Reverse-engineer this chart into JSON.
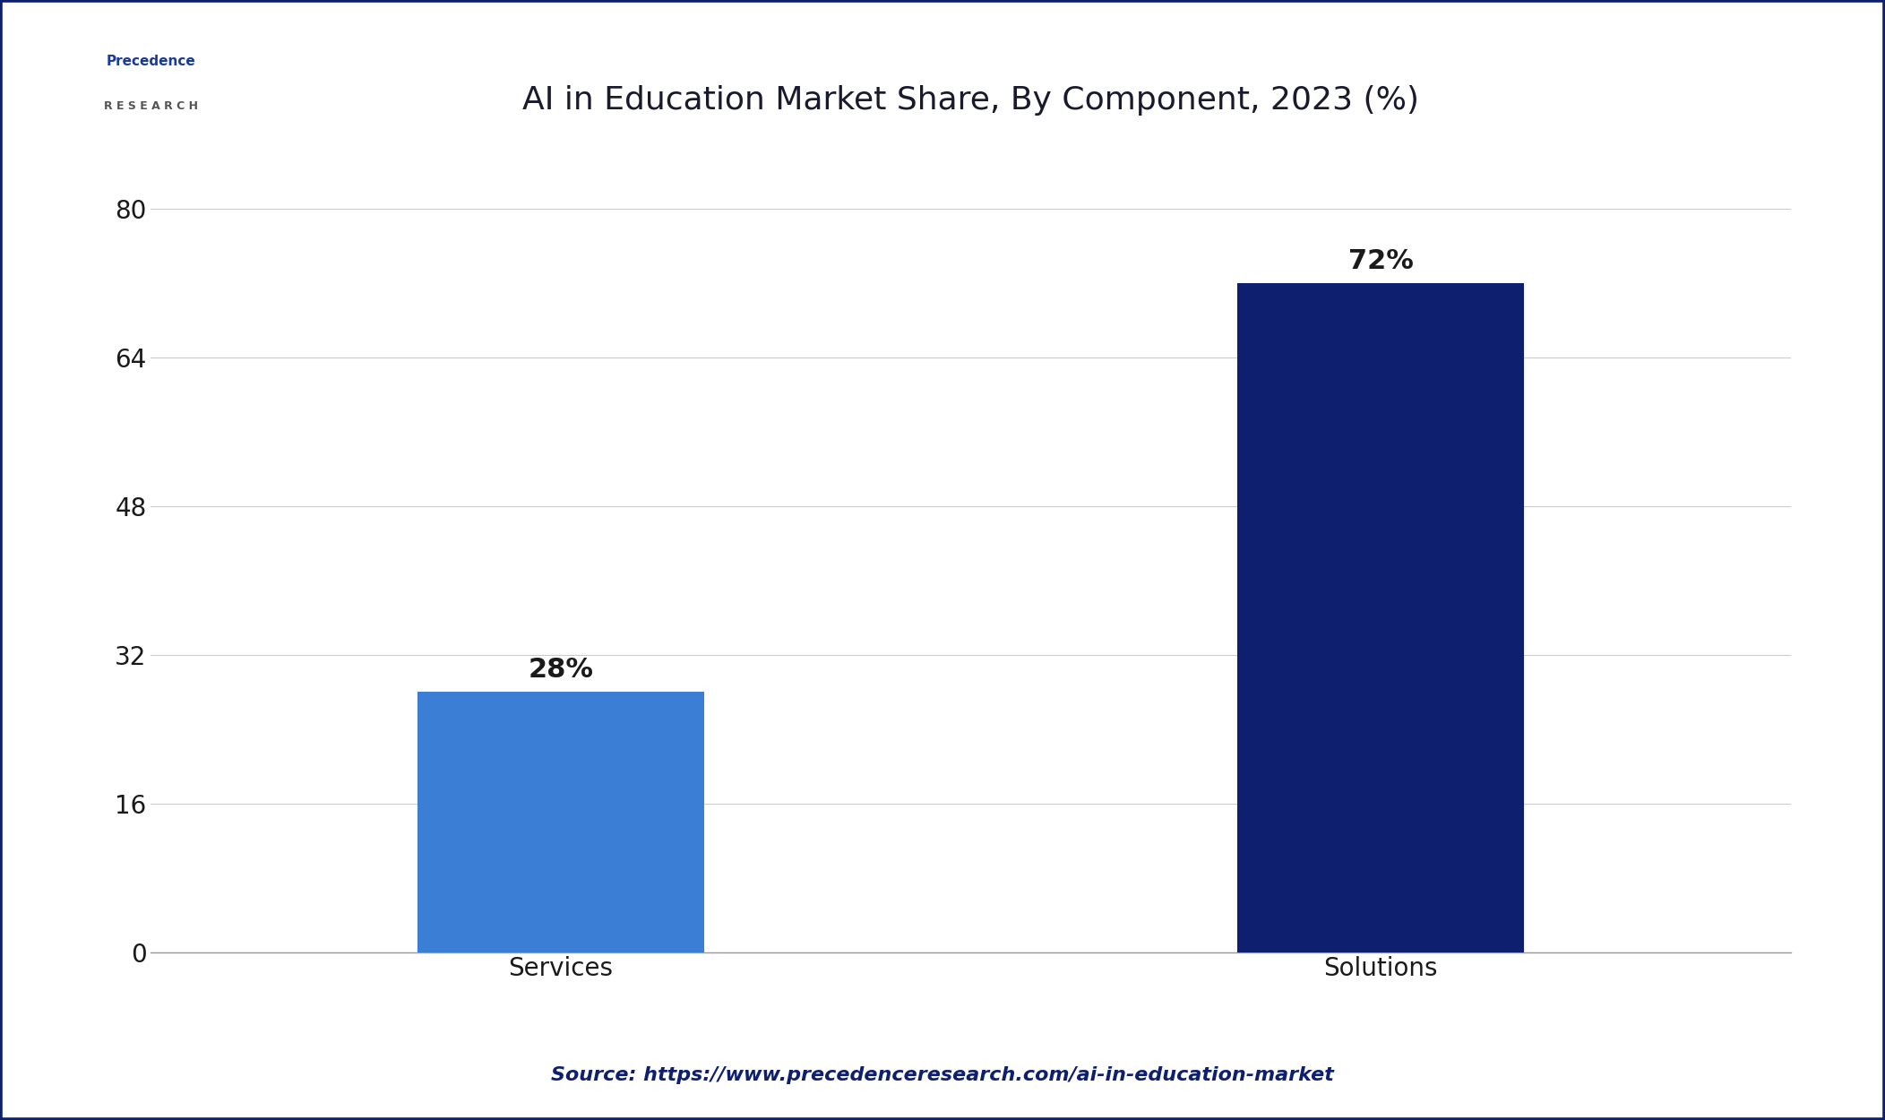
{
  "title": "AI in Education Market Share, By Component, 2023 (%)",
  "categories": [
    "Services",
    "Solutions"
  ],
  "values": [
    28,
    72
  ],
  "bar_colors": [
    "#3a7fd5",
    "#0d1f6e"
  ],
  "bar_labels": [
    "28%",
    "72%"
  ],
  "yticks": [
    0,
    16,
    32,
    48,
    64,
    80
  ],
  "ylim": [
    0,
    88
  ],
  "background_color": "#ffffff",
  "plot_bg_color": "#ffffff",
  "border_color": "#0d1f6e",
  "source_text": "Source: https://www.precedenceresearch.com/ai-in-education-market",
  "source_color": "#0d1f6e",
  "title_color": "#1a1a2e",
  "label_color": "#1a1a1a",
  "tick_color": "#1a1a1a",
  "grid_color": "#cccccc",
  "title_fontsize": 26,
  "label_fontsize": 20,
  "tick_fontsize": 20,
  "source_fontsize": 16,
  "bar_label_fontsize": 22
}
